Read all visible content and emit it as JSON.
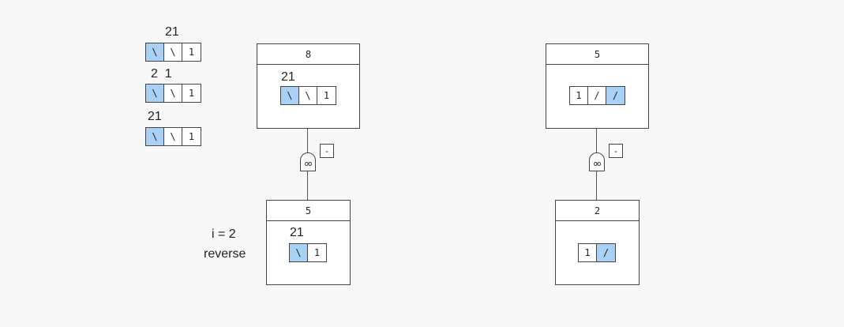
{
  "legend": [
    {
      "label": "21",
      "cells": [
        {
          "t": "\\",
          "hl": true
        },
        {
          "t": "\\",
          "hl": false
        },
        {
          "t": "1",
          "hl": false
        }
      ]
    },
    {
      "label": "2  1",
      "cells": [
        {
          "t": "\\",
          "hl": true
        },
        {
          "t": "\\",
          "hl": false
        },
        {
          "t": "1",
          "hl": false
        }
      ]
    },
    {
      "label": "21",
      "cells": [
        {
          "t": "\\",
          "hl": true
        },
        {
          "t": "\\",
          "hl": false
        },
        {
          "t": "1",
          "hl": false
        }
      ]
    }
  ],
  "nodes": {
    "top_left": {
      "header": "8",
      "label": "21",
      "cells": [
        {
          "t": "\\",
          "hl": true
        },
        {
          "t": "\\",
          "hl": false
        },
        {
          "t": "1",
          "hl": false
        }
      ]
    },
    "bottom_left": {
      "header": "5",
      "label": "21",
      "cells": [
        {
          "t": "\\",
          "hl": true
        },
        {
          "t": "1",
          "hl": false
        }
      ]
    },
    "top_right": {
      "header": "5",
      "label": "",
      "cells": [
        {
          "t": "1",
          "hl": false
        },
        {
          "t": "/",
          "hl": false
        },
        {
          "t": "/",
          "hl": true
        }
      ]
    },
    "bottom_right": {
      "header": "2",
      "label": "",
      "cells": [
        {
          "t": "1",
          "hl": false
        },
        {
          "t": "/",
          "hl": true
        }
      ]
    }
  },
  "connectors": {
    "left": {
      "gate_symbol": "oo",
      "tag": "-"
    },
    "right": {
      "gate_symbol": "oo",
      "tag": "-"
    }
  },
  "annotation": {
    "line1": "i = 2",
    "line2": "reverse"
  },
  "colors": {
    "highlight": "#a8d1f5",
    "border": "#444444",
    "background": "#f7f7f7"
  }
}
